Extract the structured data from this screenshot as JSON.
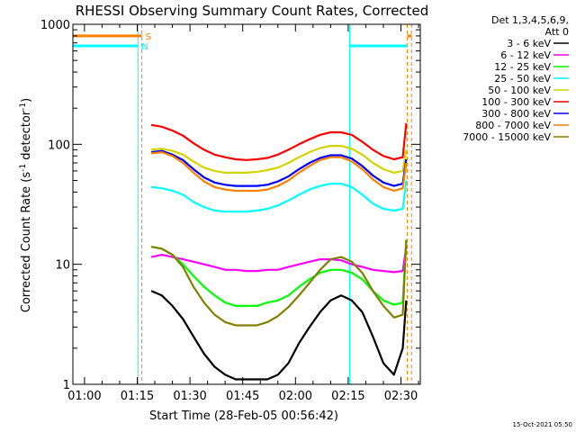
{
  "chart_data": {
    "type": "line",
    "title": "RHESSI Observing Summary Count Rates, Corrected",
    "xlabel": "Start Time (28-Feb-05 00:56:42)",
    "ylabel": "Corrected Count Rate (s⁻¹ detector⁻¹)",
    "ylabel_main": "Corrected Count Rate (s",
    "ylabel_exp1": "-1",
    "ylabel_mid": " detector",
    "ylabel_exp2": "-1",
    "ylabel_end": ")",
    "y_scale": "log",
    "ylim": [
      1,
      1000
    ],
    "xlim_minutes": [
      56.7,
      155.5
    ],
    "x_ticks": [
      {
        "label": "01:00",
        "minute": 60
      },
      {
        "label": "01:15",
        "minute": 75
      },
      {
        "label": "01:30",
        "minute": 90
      },
      {
        "label": "01:45",
        "minute": 105
      },
      {
        "label": "02:00",
        "minute": 120
      },
      {
        "label": "02:15",
        "minute": 135
      },
      {
        "label": "02:30",
        "minute": 150
      }
    ],
    "y_ticks": [
      {
        "label": "1",
        "value": 1
      },
      {
        "label": "10",
        "value": 10
      },
      {
        "label": "100",
        "value": 100
      },
      {
        "label": "1000",
        "value": 1000
      }
    ],
    "legend": {
      "placement": "right",
      "header1": "Det 1,3,4,5,6,9,",
      "header2": "Att 0",
      "entries": [
        {
          "label": "3 - 6 keV",
          "color": "#000000"
        },
        {
          "label": "6 - 12 keV",
          "color": "#ff00ff"
        },
        {
          "label": "12 - 25 keV",
          "color": "#00ff00"
        },
        {
          "label": "25 - 50 keV",
          "color": "#00ffff"
        },
        {
          "label": "50 - 100 keV",
          "color": "#d4d400"
        },
        {
          "label": "100 - 300 keV",
          "color": "#ff0000"
        },
        {
          "label": "300 - 800 keV",
          "color": "#0000ff"
        },
        {
          "label": "800 - 7000 keV",
          "color": "#ff8000"
        },
        {
          "label": "7000 - 15000 keV",
          "color": "#808000"
        }
      ]
    },
    "flag_bars": [
      {
        "label": "S",
        "color": "#ff8000",
        "value": 800,
        "segments": [
          [
            56.7,
            76.3
          ],
          [
            151.8,
            153.0
          ]
        ]
      },
      {
        "label": "N",
        "color": "#00ffff",
        "value": 660,
        "segments": [
          [
            56.7,
            75.2
          ],
          [
            135.4,
            151.8
          ]
        ]
      }
    ],
    "vertical_markers": [
      {
        "minute": 75.2,
        "color": "#00ffff",
        "style": "solid"
      },
      {
        "minute": 76.3,
        "color": "#ff8000",
        "style": "dashed"
      },
      {
        "minute": 135.4,
        "color": "#00ffff",
        "style": "solid"
      },
      {
        "minute": 151.8,
        "color": "#ff8000",
        "style": "dashed"
      },
      {
        "minute": 153.0,
        "color": "#ff8000",
        "style": "dashed"
      }
    ],
    "series": [
      {
        "name": "3 - 6 keV",
        "color": "#000000",
        "x": [
          79,
          82,
          85,
          88,
          91,
          94,
          97,
          100,
          103,
          106,
          109,
          112,
          115,
          118,
          121,
          124,
          127,
          130,
          133,
          136,
          139,
          142,
          145,
          148,
          150.5,
          151.5
        ],
        "y": [
          6.0,
          5.5,
          4.5,
          3.5,
          2.5,
          1.8,
          1.4,
          1.2,
          1.1,
          1.1,
          1.1,
          1.1,
          1.2,
          1.5,
          2.2,
          3.0,
          4.0,
          5.0,
          5.5,
          5.0,
          4.0,
          2.5,
          1.5,
          1.2,
          2.0,
          5.0
        ]
      },
      {
        "name": "6 - 12 keV",
        "color": "#ff00ff",
        "x": [
          79,
          82,
          85,
          88,
          91,
          94,
          97,
          100,
          103,
          106,
          109,
          112,
          115,
          118,
          121,
          124,
          127,
          130,
          133,
          136,
          139,
          142,
          145,
          148,
          150.5,
          151.5
        ],
        "y": [
          11.5,
          12.0,
          11.5,
          11.0,
          10.5,
          10.0,
          9.5,
          9.0,
          9.0,
          8.8,
          8.8,
          9.0,
          9.0,
          9.5,
          10.0,
          10.5,
          11.0,
          11.0,
          10.8,
          10.0,
          9.5,
          9.0,
          8.8,
          8.6,
          8.8,
          14.0
        ]
      },
      {
        "name": "12 - 25 keV",
        "color": "#00ff00",
        "x": [
          79,
          82,
          85,
          88,
          91,
          94,
          97,
          100,
          103,
          106,
          109,
          112,
          115,
          118,
          121,
          124,
          127,
          130,
          133,
          136,
          139,
          142,
          145,
          148,
          150.5,
          151.5
        ],
        "y": [
          14.0,
          13.5,
          12.0,
          10.0,
          8.0,
          6.5,
          5.5,
          4.8,
          4.5,
          4.5,
          4.5,
          4.8,
          5.0,
          5.5,
          6.5,
          7.5,
          8.5,
          9.0,
          9.0,
          8.5,
          7.5,
          6.0,
          5.0,
          4.6,
          4.8,
          16.0
        ]
      },
      {
        "name": "25 - 50 keV",
        "color": "#00ffff",
        "x": [
          79,
          82,
          85,
          88,
          91,
          94,
          97,
          100,
          103,
          106,
          109,
          112,
          115,
          118,
          121,
          124,
          127,
          130,
          133,
          136,
          139,
          142,
          145,
          148,
          150.5,
          151.5
        ],
        "y": [
          44.0,
          43.0,
          41.0,
          38.0,
          33.0,
          30.0,
          28.0,
          27.5,
          27.5,
          27.5,
          28.0,
          29.0,
          31.0,
          34.0,
          38.0,
          42.0,
          45.0,
          47.0,
          47.0,
          44.0,
          38.0,
          32.0,
          29.0,
          28.0,
          29.0,
          50.0
        ]
      },
      {
        "name": "50 - 100 keV",
        "color": "#d4d400",
        "x": [
          79,
          82,
          85,
          88,
          91,
          94,
          97,
          100,
          103,
          106,
          109,
          112,
          115,
          118,
          121,
          124,
          127,
          130,
          133,
          136,
          139,
          142,
          145,
          148,
          150.5,
          151.5
        ],
        "y": [
          90.0,
          92.0,
          88.0,
          82.0,
          72.0,
          64.0,
          60.0,
          58.0,
          58.0,
          58.0,
          59.0,
          61.0,
          64.0,
          70.0,
          78.0,
          86.0,
          93.0,
          97.0,
          97.0,
          92.0,
          82.0,
          70.0,
          62.0,
          58.0,
          60.0,
          90.0
        ]
      },
      {
        "name": "100 - 300 keV",
        "color": "#ff0000",
        "x": [
          79,
          82,
          85,
          88,
          91,
          94,
          97,
          100,
          103,
          106,
          109,
          112,
          115,
          118,
          121,
          124,
          127,
          130,
          133,
          136,
          139,
          142,
          145,
          148,
          150.5,
          151.5
        ],
        "y": [
          145.0,
          140.0,
          130.0,
          118.0,
          102.0,
          90.0,
          82.0,
          78.0,
          75.0,
          74.0,
          75.0,
          77.0,
          82.0,
          90.0,
          100.0,
          110.0,
          120.0,
          126.0,
          126.0,
          120.0,
          105.0,
          90.0,
          80.0,
          75.0,
          78.0,
          150.0
        ]
      },
      {
        "name": "300 - 800 keV",
        "color": "#0000ff",
        "x": [
          79,
          82,
          85,
          88,
          91,
          94,
          97,
          100,
          103,
          106,
          109,
          112,
          115,
          118,
          121,
          124,
          127,
          130,
          133,
          136,
          139,
          142,
          145,
          148,
          150.5,
          151.5
        ],
        "y": [
          86.0,
          88.0,
          82.0,
          74.0,
          62.0,
          53.0,
          48.0,
          46.0,
          45.0,
          45.0,
          45.0,
          46.0,
          49.0,
          54.0,
          62.0,
          70.0,
          77.0,
          81.0,
          81.0,
          76.0,
          66.0,
          55.0,
          48.0,
          45.0,
          47.0,
          75.0
        ]
      },
      {
        "name": "800 - 7000 keV",
        "color": "#ff8000",
        "x": [
          79,
          82,
          85,
          88,
          91,
          94,
          97,
          100,
          103,
          106,
          109,
          112,
          115,
          118,
          121,
          124,
          127,
          130,
          133,
          136,
          139,
          142,
          145,
          148,
          150.5,
          151.5
        ],
        "y": [
          84.0,
          86.0,
          80.0,
          70.0,
          58.0,
          49.0,
          44.0,
          42.0,
          41.0,
          41.0,
          41.0,
          42.0,
          45.0,
          50.0,
          58.0,
          66.0,
          74.0,
          78.0,
          78.0,
          72.0,
          62.0,
          51.0,
          44.0,
          41.0,
          43.0,
          70.0
        ]
      },
      {
        "name": "7000 - 15000 keV",
        "color": "#808000",
        "x": [
          79,
          82,
          85,
          88,
          91,
          94,
          97,
          100,
          103,
          106,
          109,
          112,
          115,
          118,
          121,
          124,
          127,
          130,
          133,
          136,
          139,
          142,
          145,
          148,
          150.5,
          151.5
        ],
        "y": [
          14.0,
          13.5,
          12.0,
          9.5,
          6.5,
          4.8,
          3.8,
          3.3,
          3.1,
          3.1,
          3.1,
          3.3,
          3.7,
          4.4,
          5.5,
          7.0,
          9.0,
          11.0,
          11.5,
          10.5,
          8.5,
          6.0,
          4.5,
          3.6,
          3.8,
          16.0
        ]
      }
    ],
    "timestamp": "15-Oct-2021 05:50"
  }
}
